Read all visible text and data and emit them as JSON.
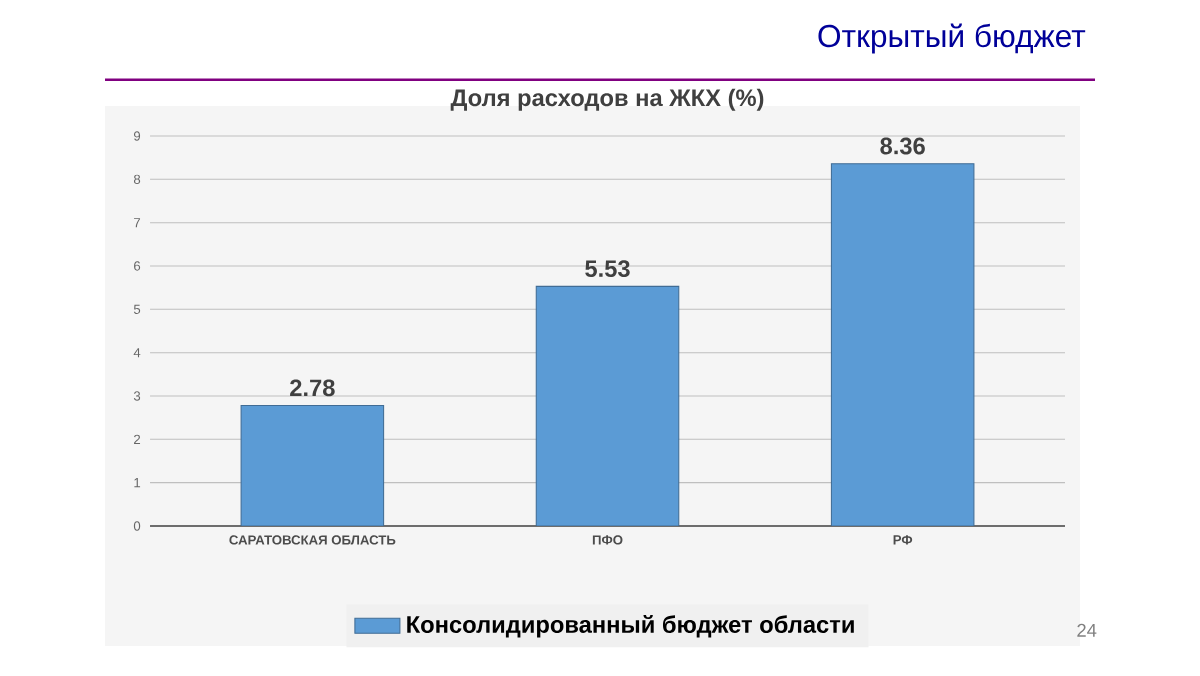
{
  "chart_data": {
    "type": "bar",
    "title": "Доля расходов на ЖКХ (%)",
    "categories": [
      "САРАТОВСКАЯ ОБЛАСТЬ",
      "ПФО",
      "РФ"
    ],
    "series": [
      {
        "name": "Консолидированный бюджет области",
        "color": "#5b9bd5",
        "values": [
          2.78,
          5.53,
          8.36
        ]
      }
    ],
    "ylim": [
      0,
      9
    ],
    "yticks": [
      0,
      1,
      2,
      3,
      4,
      5,
      6,
      7,
      8,
      9
    ],
    "grid": "y",
    "legend": "bottom",
    "data_labels": true,
    "annotations": [
      "Открытый бюджет",
      "24"
    ]
  }
}
